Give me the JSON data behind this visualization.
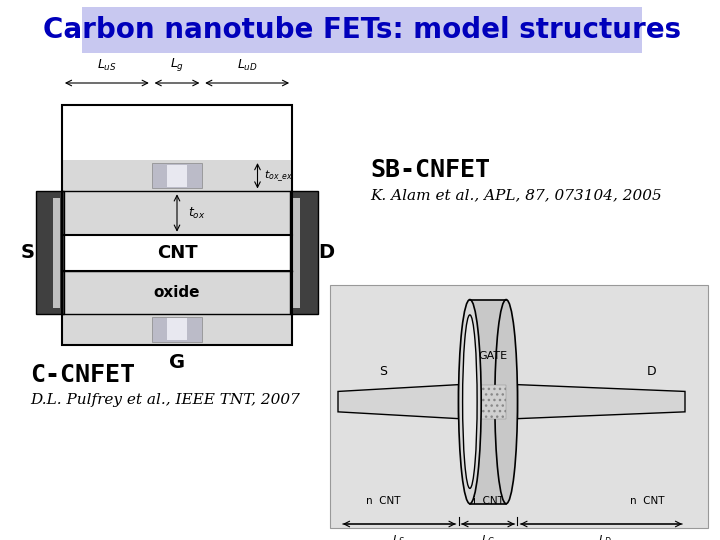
{
  "title": "Carbon nanotube FETs: model structures",
  "title_color": "#0000BB",
  "title_bg_color": "#C8C8F0",
  "bg_color": "#FFFFFF",
  "sb_label": "SB-CNFET",
  "sb_ref": "K. Alam et al., APL, 87, 073104, 2005",
  "cc_label": "C-CNFET",
  "cc_ref": "D.L. Pulfrey et al., IEEE TNT, 2007",
  "title_fontsize": 20,
  "sb_label_fontsize": 18,
  "cc_label_fontsize": 18,
  "ref_fontsize": 11
}
